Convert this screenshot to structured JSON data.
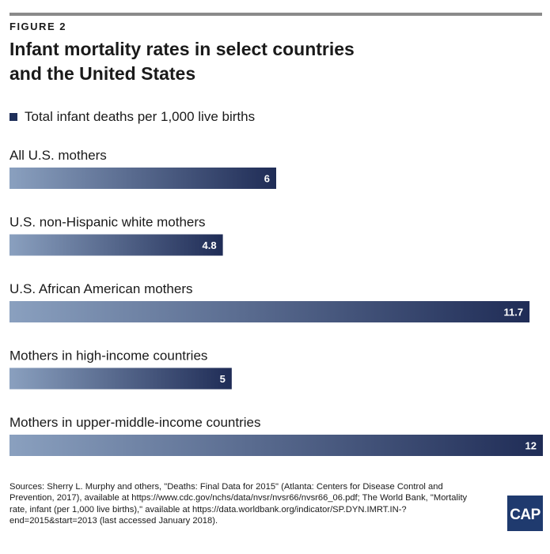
{
  "figure_label": "FIGURE 2",
  "title_line1": "Infant mortality rates in select countries",
  "title_line2": "and the United States",
  "legend_label": "Total infant deaths per 1,000 live births",
  "colors": {
    "bar_start": "#8aa0bf",
    "bar_end": "#1f2c56",
    "legend": "#1f2f5a",
    "rule": "#8a8a8a",
    "logo": "#1f3a6e"
  },
  "source_text": "Sources: Sherry L. Murphy and others,  \"Deaths: Final Data for 2015\" (Atlanta: Centers for Disease Control and Prevention, 2017), available at https://www.cdc.gov/nchs/data/nvsr/nvsr66/nvsr66_06.pdf; The World Bank, \"Mortality rate, infant (per 1,000 live births),\" available at https://data.worldbank.org/indicator/SP.DYN.IMRT.IN-?end=2015&start=2013 (last accessed January 2018).",
  "logo_text": "CAP",
  "chart_data": {
    "type": "bar",
    "orientation": "horizontal",
    "categories": [
      "All U.S. mothers",
      "U.S. non-Hispanic white mothers",
      "U.S. African American mothers",
      "Mothers in high-income countries",
      "Mothers in upper-middle-income countries"
    ],
    "series": [
      {
        "name": "Total infant deaths per 1,000 live births",
        "values": [
          6,
          4.8,
          11.7,
          5,
          12
        ]
      }
    ],
    "value_labels": [
      "6",
      "4.8",
      "11.7",
      "5",
      "12"
    ],
    "xlim": [
      0,
      12
    ],
    "grid": false,
    "legend": "top-left"
  }
}
